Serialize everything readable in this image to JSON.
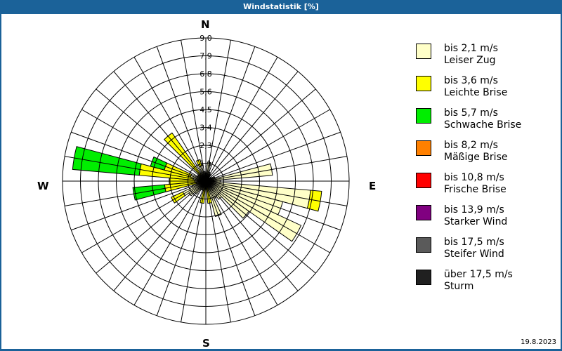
{
  "window": {
    "title": "Windstatistik [%]"
  },
  "compass": {
    "n": "N",
    "e": "E",
    "s": "S",
    "w": "W"
  },
  "date": "19.8.2023",
  "legend": [
    {
      "range": "bis 2,1 m/s",
      "label": "Leiser Zug",
      "color": "#ffffc8"
    },
    {
      "range": "bis 3,6 m/s",
      "label": "Leichte Brise",
      "color": "#ffff00"
    },
    {
      "range": "bis 5,7 m/s",
      "label": "Schwache Brise",
      "color": "#00ee00"
    },
    {
      "range": "bis 8,2 m/s",
      "label": "Mäßige Brise",
      "color": "#ff8000"
    },
    {
      "range": "bis 10,8 m/s",
      "label": "Frische Brise",
      "color": "#ff0000"
    },
    {
      "range": "bis 13,9 m/s",
      "label": "Starker Wind",
      "color": "#800080"
    },
    {
      "range": "bis 17,5 m/s",
      "label": "Steifer Wind",
      "color": "#5a5a5a"
    },
    {
      "range": "über 17,5 m/s",
      "label": "Sturm",
      "color": "#202020"
    }
  ],
  "chart_data": {
    "type": "polar-bar",
    "title": "Windstatistik [%]",
    "radial_ticks": [
      "1,1",
      "2,3",
      "3,4",
      "4,5",
      "5,6",
      "6,8",
      "7,9",
      "9,0"
    ],
    "rmax": 9.0,
    "directions_count": 36,
    "series_names": [
      "bis 2,1 m/s",
      "bis 3,6 m/s",
      "bis 5,7 m/s",
      "bis 8,2 m/s",
      "bis 10,8 m/s",
      "bis 13,9 m/s",
      "bis 17,5 m/s",
      "über 17,5 m/s"
    ],
    "sectors": [
      {
        "dir": 0,
        "stack": [
          0.3,
          0.2
        ]
      },
      {
        "dir": 10,
        "stack": [
          1.2
        ]
      },
      {
        "dir": 20,
        "stack": [
          0.6
        ]
      },
      {
        "dir": 30,
        "stack": [
          0.5
        ]
      },
      {
        "dir": 40,
        "stack": [
          0.3
        ]
      },
      {
        "dir": 50,
        "stack": [
          0.3
        ]
      },
      {
        "dir": 60,
        "stack": [
          0.4
        ]
      },
      {
        "dir": 70,
        "stack": [
          0.6
        ]
      },
      {
        "dir": 80,
        "stack": [
          4.2
        ]
      },
      {
        "dir": 90,
        "stack": [
          0.9
        ]
      },
      {
        "dir": 100,
        "stack": [
          6.6,
          0.7
        ]
      },
      {
        "dir": 110,
        "stack": [
          5.0
        ]
      },
      {
        "dir": 120,
        "stack": [
          6.6
        ]
      },
      {
        "dir": 130,
        "stack": [
          3.3
        ]
      },
      {
        "dir": 140,
        "stack": [
          1.4
        ]
      },
      {
        "dir": 150,
        "stack": [
          1.2
        ]
      },
      {
        "dir": 160,
        "stack": [
          2.3
        ]
      },
      {
        "dir": 170,
        "stack": [
          0.3,
          1.1
        ]
      },
      {
        "dir": 180,
        "stack": [
          0.3
        ]
      },
      {
        "dir": 190,
        "stack": [
          0.3,
          1.1
        ]
      },
      {
        "dir": 200,
        "stack": [
          0.6
        ]
      },
      {
        "dir": 210,
        "stack": [
          0.6
        ]
      },
      {
        "dir": 220,
        "stack": [
          1.0
        ]
      },
      {
        "dir": 230,
        "stack": [
          1.3
        ]
      },
      {
        "dir": 240,
        "stack": [
          1.6,
          0.8
        ]
      },
      {
        "dir": 250,
        "stack": [
          0.9
        ]
      },
      {
        "dir": 260,
        "stack": [
          0.6,
          2.0,
          2.0
        ]
      },
      {
        "dir": 270,
        "stack": [
          0.7,
          1.6
        ]
      },
      {
        "dir": 280,
        "stack": [
          0.8,
          3.4,
          4.2
        ]
      },
      {
        "dir": 290,
        "stack": [
          1.0,
          1.7,
          0.9
        ]
      },
      {
        "dir": 300,
        "stack": [
          0.6
        ]
      },
      {
        "dir": 310,
        "stack": [
          0.6
        ]
      },
      {
        "dir": 320,
        "stack": [
          0.5,
          3.2
        ]
      },
      {
        "dir": 330,
        "stack": [
          0.6
        ]
      },
      {
        "dir": 340,
        "stack": [
          1.0,
          0.4
        ]
      },
      {
        "dir": 350,
        "stack": [
          0.6
        ]
      }
    ],
    "legend_position": "right",
    "grid": true
  }
}
